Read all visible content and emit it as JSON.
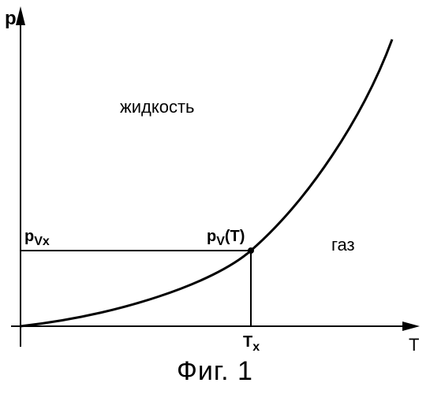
{
  "axes": {
    "y_label": "p",
    "x_label": "T"
  },
  "regions": {
    "liquid": "жидкость",
    "gas": "газ"
  },
  "annotations": {
    "curve_label_main": "p",
    "curve_label_sub": "V",
    "curve_label_tail": "(T)",
    "pressure_main": "p",
    "pressure_sub": "Vx",
    "temperature_main": "T",
    "temperature_sub": "x"
  },
  "caption": "Фиг. 1",
  "colors": {
    "ink": "#000000",
    "background": "#ffffff"
  }
}
